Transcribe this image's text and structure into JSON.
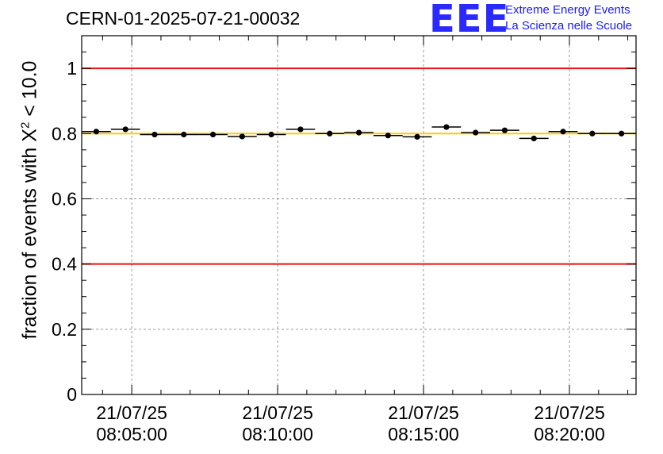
{
  "chart_data": {
    "type": "scatter",
    "title": "CERN-01-2025-07-21-00032",
    "ylabel": {
      "prefix": "fraction of events with ",
      "symbol": "X",
      "superscript": "2",
      "suffix": " < 10.0"
    },
    "xlabel": "",
    "ylim": [
      0,
      1.1
    ],
    "yticks": [
      "0",
      "0.2",
      "0.4",
      "0.6",
      "0.8",
      "1"
    ],
    "ytick_values": [
      0,
      0.2,
      0.4,
      0.6,
      0.8,
      1.0
    ],
    "xlim_seconds": [
      197,
      1337
    ],
    "xticks": [
      {
        "t": 300,
        "date": "21/07/25",
        "time": "08:05:00"
      },
      {
        "t": 600,
        "date": "21/07/25",
        "time": "08:10:00"
      },
      {
        "t": 900,
        "date": "21/07/25",
        "time": "08:15:00"
      },
      {
        "t": 1200,
        "date": "21/07/25",
        "time": "08:20:00"
      }
    ],
    "time_origin": "21/07/25 08:00:00",
    "bin_width_seconds": 60,
    "reference_lines": [
      {
        "value": 1.0,
        "color": "#ee1111"
      },
      {
        "value": 0.4,
        "color": "#ee1111"
      },
      {
        "value": 0.8,
        "color": "#ffcc00"
      }
    ],
    "series": [
      {
        "name": "fraction",
        "color": "#000000",
        "x": [
          227,
          287,
          347,
          407,
          467,
          527,
          587,
          647,
          707,
          767,
          827,
          887,
          947,
          1007,
          1067,
          1127,
          1187,
          1247,
          1307
        ],
        "y": [
          0.806,
          0.813,
          0.797,
          0.797,
          0.797,
          0.791,
          0.797,
          0.813,
          0.8,
          0.803,
          0.794,
          0.79,
          0.82,
          0.803,
          0.81,
          0.785,
          0.806,
          0.8,
          0.8
        ]
      }
    ],
    "grid": true
  },
  "logo": {
    "mark": "EEE",
    "line1": "Extreme Energy Events",
    "line2": "La Scienza nelle Scuole"
  }
}
